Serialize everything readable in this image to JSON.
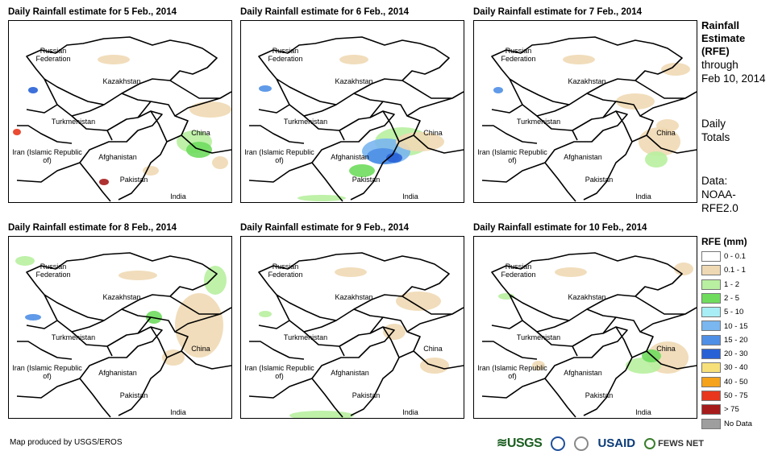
{
  "panels": [
    {
      "title": "Daily Rainfall estimate for 5 Feb., 2014"
    },
    {
      "title": "Daily Rainfall estimate for 6 Feb., 2014"
    },
    {
      "title": "Daily Rainfall estimate for 7 Feb., 2014"
    },
    {
      "title": "Daily Rainfall estimate for 8 Feb., 2014"
    },
    {
      "title": "Daily Rainfall estimate for 9 Feb., 2014"
    },
    {
      "title": "Daily Rainfall estimate for 10 Feb., 2014"
    }
  ],
  "map_labels": {
    "russia": "Russian Federation",
    "kazakhstan": "Kazakhstan",
    "turkmenistan": "Turkmenistan",
    "iran": "Iran (Islamic Republic of)",
    "afghanistan": "Afghanistan",
    "pakistan": "Pakistan",
    "china": "China",
    "india": "India"
  },
  "sidebar": {
    "heading_line1": "Rainfall",
    "heading_line2": "Estimate",
    "heading_line3": "(RFE)",
    "through_line1": "through",
    "through_line2": "Feb 10, 2014",
    "daily_line1": "Daily",
    "daily_line2": "Totals",
    "data_line1": "Data:",
    "data_line2": "NOAA-",
    "data_line3": "RFE2.0"
  },
  "legend": {
    "title": "RFE (mm)",
    "items": [
      {
        "label": "0 - 0.1",
        "color": "#ffffff"
      },
      {
        "label": "0.1 - 1",
        "color": "#efd9b4"
      },
      {
        "label": "1 - 2",
        "color": "#b8efa0"
      },
      {
        "label": "2 - 5",
        "color": "#6fdc5e"
      },
      {
        "label": "5 - 10",
        "color": "#a8eef6"
      },
      {
        "label": "10 - 15",
        "color": "#7ab6ef"
      },
      {
        "label": "15 - 20",
        "color": "#4f8fe6"
      },
      {
        "label": "20 - 30",
        "color": "#2861d6"
      },
      {
        "label": "30 - 40",
        "color": "#f7e07a"
      },
      {
        "label": "40 - 50",
        "color": "#f5a21c"
      },
      {
        "label": "50 - 75",
        "color": "#e8371c"
      },
      {
        "label": "> 75",
        "color": "#a61c1c"
      },
      {
        "label": "No Data",
        "color": "#9e9e9e"
      }
    ]
  },
  "credit": "Map produced by USGS/EROS",
  "logos": {
    "usgs": "≋USGS",
    "usaid": "USAID",
    "fews": "FEWS NET"
  }
}
